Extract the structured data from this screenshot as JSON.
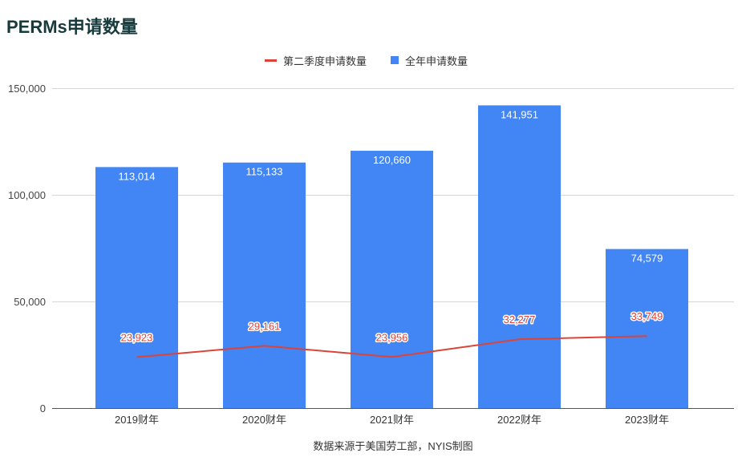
{
  "source": "数据来源于美国劳工部，NYIS制图",
  "chart_data": {
    "type": "bar",
    "title": "PERMs申请数量",
    "categories": [
      "2019财年",
      "2020财年",
      "2021财年",
      "2022财年",
      "2023财年"
    ],
    "series": [
      {
        "name": "第二季度申请数量",
        "type": "line",
        "color": "#DB4437",
        "values": [
          23923,
          29161,
          23956,
          32277,
          33749
        ]
      },
      {
        "name": "全年申请数量",
        "type": "bar",
        "color": "#4285F4",
        "values": [
          113014,
          115133,
          120660,
          141951,
          74579
        ]
      }
    ],
    "ylim": [
      0,
      150000
    ],
    "yticks": [
      0,
      50000,
      100000,
      150000
    ],
    "ytick_labels": [
      "0",
      "50,000",
      "100,000",
      "150,000"
    ],
    "grid": true,
    "legend": "top",
    "data_labels": true
  }
}
